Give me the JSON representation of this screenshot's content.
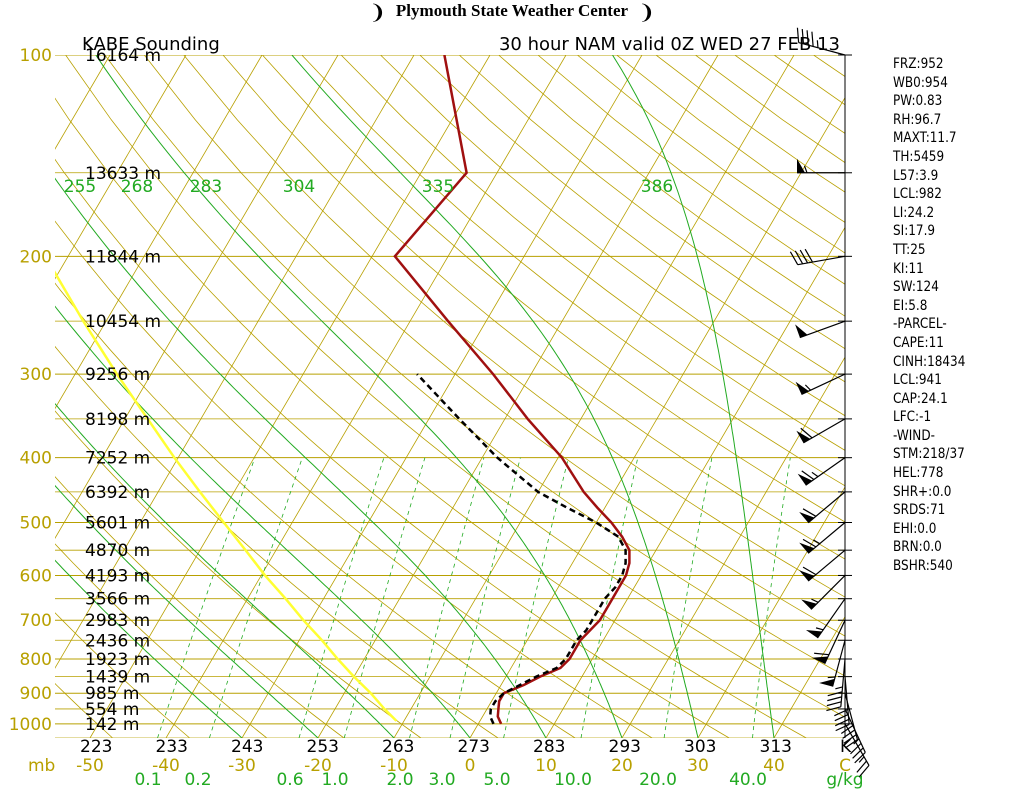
{
  "header": {
    "title": "Plymouth State Weather Center",
    "left_symbol": "❩",
    "right_symbol": "❩"
  },
  "chart_data": {
    "type": "skew-t",
    "title": "KABE Sounding",
    "subtitle": "30 hour NAM valid 0Z WED 27 FEB 13",
    "pressure_levels": [
      100,
      200,
      300,
      400,
      500,
      600,
      700,
      800,
      900,
      1000
    ],
    "pressure_labels": [
      "100",
      "200",
      "300",
      "400",
      "500",
      "600",
      "700",
      "800",
      "900",
      "1000"
    ],
    "pressure_unit": "mb",
    "temperature_ticks": [
      -50,
      -40,
      -30,
      -20,
      -10,
      0,
      10,
      20,
      30,
      40
    ],
    "temperature_labels": [
      "-50",
      "-40",
      "-30",
      "-20",
      "-10",
      "0",
      "10",
      "20",
      "30",
      "40"
    ],
    "temperature_unit": "C",
    "mixing_ratio_ticks": [
      0.1,
      0.2,
      0.6,
      1.0,
      2.0,
      3.0,
      5.0,
      10.0,
      20.0,
      40.0
    ],
    "mixing_ratio_labels": [
      "0.1",
      "0.2",
      "0.6",
      "1.0",
      "2.0",
      "3.0",
      "5.0",
      "10.0",
      "20.0",
      "40.0"
    ],
    "mixing_ratio_unit": "g/kg",
    "theta_ticks": [
      223,
      233,
      243,
      253,
      263,
      273,
      283,
      293,
      303,
      313
    ],
    "theta_labels": [
      "223",
      "233",
      "243",
      "253",
      "263",
      "273",
      "283",
      "293",
      "303",
      "313"
    ],
    "theta_unit": "K",
    "thetae_labels": [
      "255",
      "268",
      "283",
      "304",
      "335",
      "386"
    ],
    "height_levels": [
      {
        "p": 100,
        "label": "16164 m"
      },
      {
        "p": 150,
        "label": "13633 m"
      },
      {
        "p": 200,
        "label": "11844 m"
      },
      {
        "p": 250,
        "label": "10454 m"
      },
      {
        "p": 300,
        "label": "9256 m"
      },
      {
        "p": 350,
        "label": "8198 m"
      },
      {
        "p": 400,
        "label": "7252 m"
      },
      {
        "p": 450,
        "label": "6392 m"
      },
      {
        "p": 500,
        "label": "5601 m"
      },
      {
        "p": 550,
        "label": "4870 m"
      },
      {
        "p": 600,
        "label": "4193 m"
      },
      {
        "p": 650,
        "label": "3566 m"
      },
      {
        "p": 700,
        "label": "2983 m"
      },
      {
        "p": 750,
        "label": "2436 m"
      },
      {
        "p": 800,
        "label": "1923 m"
      },
      {
        "p": 850,
        "label": "1439 m"
      },
      {
        "p": 900,
        "label": "985 m"
      },
      {
        "p": 950,
        "label": "554 m"
      },
      {
        "p": 1000,
        "label": "142 m"
      }
    ],
    "temperature_profile": [
      {
        "p": 1000,
        "t": 3.0
      },
      {
        "p": 975,
        "t": 2.0
      },
      {
        "p": 950,
        "t": 1.5
      },
      {
        "p": 925,
        "t": 1.0
      },
      {
        "p": 900,
        "t": 1.0
      },
      {
        "p": 875,
        "t": 3.0
      },
      {
        "p": 850,
        "t": 4.5
      },
      {
        "p": 825,
        "t": 6.5
      },
      {
        "p": 800,
        "t": 7.0
      },
      {
        "p": 775,
        "t": 7.0
      },
      {
        "p": 750,
        "t": 7.0
      },
      {
        "p": 725,
        "t": 7.5
      },
      {
        "p": 700,
        "t": 8.0
      },
      {
        "p": 675,
        "t": 8.0
      },
      {
        "p": 650,
        "t": 8.0
      },
      {
        "p": 625,
        "t": 8.0
      },
      {
        "p": 600,
        "t": 8.0
      },
      {
        "p": 575,
        "t": 7.5
      },
      {
        "p": 550,
        "t": 6.5
      },
      {
        "p": 525,
        "t": 4.5
      },
      {
        "p": 500,
        "t": 2.0
      },
      {
        "p": 475,
        "t": -1.0
      },
      {
        "p": 450,
        "t": -4.0
      },
      {
        "p": 400,
        "t": -9.5
      },
      {
        "p": 350,
        "t": -17.0
      },
      {
        "p": 300,
        "t": -25.0
      },
      {
        "p": 250,
        "t": -35.0
      },
      {
        "p": 200,
        "t": -47.0
      },
      {
        "p": 150,
        "t": -44.0
      },
      {
        "p": 100,
        "t": -56.0
      }
    ],
    "dewpoint_profile": [
      {
        "p": 1000,
        "t": 2.0
      },
      {
        "p": 975,
        "t": 1.0
      },
      {
        "p": 950,
        "t": 0.5
      },
      {
        "p": 925,
        "t": 0.5
      },
      {
        "p": 900,
        "t": 1.0
      },
      {
        "p": 875,
        "t": 2.5
      },
      {
        "p": 850,
        "t": 4.0
      },
      {
        "p": 825,
        "t": 6.0
      },
      {
        "p": 800,
        "t": 6.5
      },
      {
        "p": 775,
        "t": 6.5
      },
      {
        "p": 750,
        "t": 6.5
      },
      {
        "p": 725,
        "t": 7.0
      },
      {
        "p": 700,
        "t": 7.0
      },
      {
        "p": 675,
        "t": 7.0
      },
      {
        "p": 650,
        "t": 7.0
      },
      {
        "p": 625,
        "t": 7.5
      },
      {
        "p": 600,
        "t": 7.5
      },
      {
        "p": 575,
        "t": 7.0
      },
      {
        "p": 550,
        "t": 6.0
      },
      {
        "p": 525,
        "t": 4.0
      },
      {
        "p": 500,
        "t": 0.0
      },
      {
        "p": 475,
        "t": -5.0
      },
      {
        "p": 450,
        "t": -10.0
      },
      {
        "p": 400,
        "t": -18.0
      },
      {
        "p": 350,
        "t": -26.0
      },
      {
        "p": 300,
        "t": -35.0
      }
    ],
    "parcel_profile": [
      {
        "p": 990,
        "t": -11.0
      },
      {
        "p": 950,
        "t": -13.5
      },
      {
        "p": 900,
        "t": -16.5
      },
      {
        "p": 850,
        "t": -20.0
      },
      {
        "p": 800,
        "t": -23.5
      },
      {
        "p": 750,
        "t": -27.0
      },
      {
        "p": 700,
        "t": -31.0
      },
      {
        "p": 650,
        "t": -35.0
      },
      {
        "p": 600,
        "t": -39.5
      },
      {
        "p": 550,
        "t": -44.0
      },
      {
        "p": 500,
        "t": -49.0
      },
      {
        "p": 450,
        "t": -54.5
      },
      {
        "p": 400,
        "t": -60.5
      },
      {
        "p": 350,
        "t": -67.0
      },
      {
        "p": 300,
        "t": -74.5
      },
      {
        "p": 250,
        "t": -83.0
      },
      {
        "p": 200,
        "t": -93.0
      },
      {
        "p": 150,
        "t": -104.0
      },
      {
        "p": 130,
        "t": -108.0
      }
    ],
    "wind_barbs": [
      {
        "p": 100,
        "dir": 285,
        "spd": 45
      },
      {
        "p": 150,
        "dir": 270,
        "spd": 55
      },
      {
        "p": 200,
        "dir": 260,
        "spd": 40
      },
      {
        "p": 250,
        "dir": 250,
        "spd": 50
      },
      {
        "p": 300,
        "dir": 245,
        "spd": 55
      },
      {
        "p": 350,
        "dir": 240,
        "spd": 60
      },
      {
        "p": 400,
        "dir": 235,
        "spd": 65
      },
      {
        "p": 450,
        "dir": 230,
        "spd": 60
      },
      {
        "p": 500,
        "dir": 230,
        "spd": 65
      },
      {
        "p": 550,
        "dir": 230,
        "spd": 60
      },
      {
        "p": 600,
        "dir": 225,
        "spd": 55
      },
      {
        "p": 650,
        "dir": 215,
        "spd": 55
      },
      {
        "p": 700,
        "dir": 205,
        "spd": 60
      },
      {
        "p": 750,
        "dir": 195,
        "spd": 55
      },
      {
        "p": 800,
        "dir": 185,
        "spd": 45
      },
      {
        "p": 850,
        "dir": 175,
        "spd": 40
      },
      {
        "p": 900,
        "dir": 165,
        "spd": 40
      },
      {
        "p": 950,
        "dir": 155,
        "spd": 35
      },
      {
        "p": 1000,
        "dir": 150,
        "spd": 25
      }
    ],
    "colors": {
      "isobar": "#b8a000",
      "isotherm": "#b8a000",
      "adiabat": "#b8a000",
      "moist_adiabat": "#22aa22",
      "mixing_ratio": "#22aa22",
      "temperature": "#a01010",
      "dewpoint": "#000000",
      "parcel": "#ffff33",
      "label_green": "#22aa22",
      "label_olive": "#b8a000",
      "barb": "#000000"
    }
  },
  "stats": [
    "FRZ:952",
    "WB0:954",
    "PW:0.83",
    "RH:96.7",
    "MAXT:11.7",
    "TH:5459",
    "L57:3.9",
    "LCL:982",
    "LI:24.2",
    "SI:17.9",
    "TT:25",
    "KI:11",
    "SW:124",
    "EI:5.8",
    "-PARCEL-",
    "CAPE:11",
    "CINH:18434",
    "LCL:941",
    "CAP:24.1",
    "LFC:-1",
    "-WIND-",
    "STM:218/37",
    "HEL:778",
    "SHR+:0.0",
    "SRDS:71",
    "EHI:0.0",
    "BRN:0.0",
    "BSHR:540"
  ]
}
